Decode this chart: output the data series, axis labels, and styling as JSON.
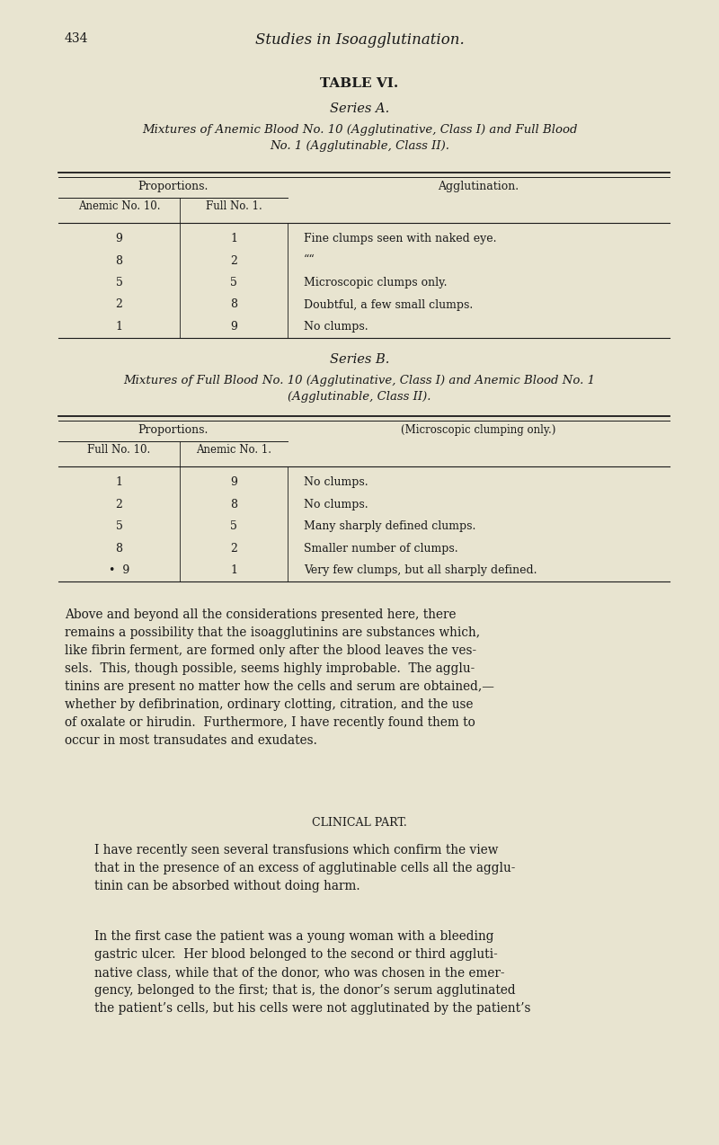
{
  "bg_color": "#e8e4d0",
  "text_color": "#1a1a1a",
  "page_number": "434",
  "page_header": "Studies in Isoagglutination.",
  "table_title": "TABLE VI.",
  "series_a_title": "Series A.",
  "series_a_subtitle": "Mixtures of Anemic Blood No. 10 (Agglutinative, Class I) and Full Blood\nNo. 1 (Agglutinable, Class II).",
  "series_a_col1a": "Anemic No. 10.",
  "series_a_col1b": "Full No. 1.",
  "series_a_col2_header": "Agglutination.",
  "series_a_data": [
    [
      "9",
      "1",
      "Fine clumps seen with naked eye."
    ],
    [
      "8",
      "2",
      "““"
    ],
    [
      "5",
      "5",
      "Microscopic clumps only."
    ],
    [
      "2",
      "8",
      "Doubtful, a few small clumps."
    ],
    [
      "1",
      "9",
      "No clumps."
    ]
  ],
  "series_b_title": "Series B.",
  "series_b_subtitle": "Mixtures of Full Blood No. 10 (Agglutinative, Class I) and Anemic Blood No. 1\n(Agglutinable, Class II).",
  "series_b_col1a": "Full No. 10.",
  "series_b_col1b": "Anemic No. 1.",
  "series_b_col2_header": "(Microscopic clumping only.)",
  "series_b_data": [
    [
      "1",
      "9",
      "No clumps."
    ],
    [
      "2",
      "8",
      "No clumps."
    ],
    [
      "5",
      "5",
      "Many sharply defined clumps."
    ],
    [
      "8",
      "2",
      "Smaller number of clumps."
    ],
    [
      "•  9",
      "1",
      "Very few clumps, but all sharply defined."
    ]
  ],
  "paragraph1": "Above and beyond all the considerations presented here, there\nremains a possibility that the isoagglutinins are substances which,\nlike fibrin ferment, are formed only after the blood leaves the ves-\nsels.  This, though possible, seems highly improbable.  The agglu-\ntinins are present no matter how the cells and serum are obtained,—\nwhether by defibrination, ordinary clotting, citration, and the use\nof oxalate or hirudin.  Furthermore, I have recently found them to\noccur in most transudates and exudates.",
  "clinical_header": "CLINICAL PART.",
  "paragraph2": "I have recently seen several transfusions which confirm the view\nthat in the presence of an excess of agglutinable cells all the agglu-\ntinin can be absorbed without doing harm.",
  "paragraph3": "In the first case the patient was a young woman with a bleeding\ngastric ulcer.  Her blood belonged to the second or third aggluti-\nnative class, while that of the donor, who was chosen in the emer-\ngency, belonged to the first; that is, the donor’s serum agglutinated\nthe patient’s cells, but his cells were not agglutinated by the patient’s"
}
